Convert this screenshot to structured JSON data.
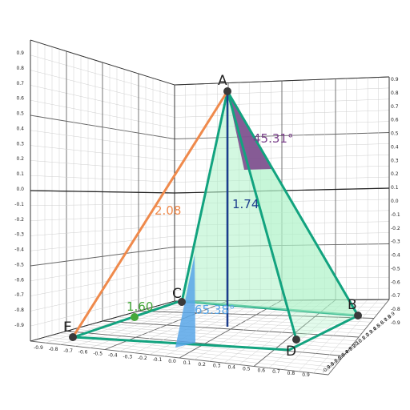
{
  "scene": {
    "points": {
      "A": {
        "label": "A"
      },
      "B": {
        "label": "B"
      },
      "C": {
        "label": "C"
      },
      "D": {
        "label": "D"
      },
      "E": {
        "label": "E"
      }
    },
    "measurements": {
      "orange_length": "2.08",
      "height_length": "1.74",
      "green_length": "1.60",
      "apex_angle": "45.31°",
      "base_angle": "65.38°"
    },
    "colors": {
      "pyramid_edge": "#12a37f",
      "pyramid_face": "#aef3c9",
      "orange": "#ef8a4c",
      "height": "#1b3c8c",
      "green": "#45a83a",
      "purple": "#7a3f8a",
      "blue": "#58a6e8",
      "point": "#3a3a3a"
    },
    "axis_ticks": {
      "left_wall": [
        "0.9",
        "0.8",
        "0.7",
        "0.6",
        "0.5",
        "0.4",
        "0.3",
        "0.2",
        "0.1",
        "0.0",
        "-0.1",
        "-0.2",
        "-0.3",
        "-0.4",
        "-0.5",
        "-0.6",
        "-0.7",
        "-0.8",
        "-0.9"
      ],
      "right_wall": [
        "0.9",
        "0.8",
        "0.7",
        "0.6",
        "0.5",
        "0.4",
        "0.3",
        "0.2",
        "0.1",
        "0.0",
        "-0.1",
        "-0.2",
        "-0.3",
        "-0.4",
        "-0.5",
        "-0.6",
        "-0.7",
        "-0.8",
        "-0.9"
      ],
      "floor_front": [
        "-0.9",
        "-0.8",
        "-0.7",
        "-0.6",
        "-0.5",
        "-0.4",
        "-0.3",
        "-0.2",
        "-0.1",
        "0.0",
        "0.1",
        "0.2",
        "0.3",
        "0.4",
        "0.5",
        "0.6",
        "0.7",
        "0.8",
        "0.9"
      ],
      "floor_side": [
        "-0.9",
        "-0.8",
        "-0.7",
        "-0.6",
        "-0.5",
        "-0.4",
        "-0.3",
        "-0.2",
        "-0.1",
        "0.0",
        "0.1",
        "0.2",
        "0.3",
        "0.4",
        "0.5",
        "0.6",
        "0.7",
        "0.8",
        "0.9"
      ]
    }
  }
}
